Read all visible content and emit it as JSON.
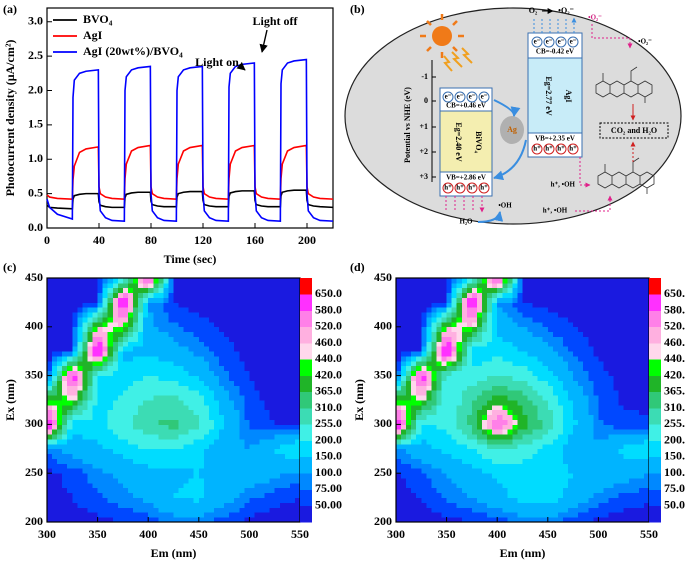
{
  "chart_data": [
    {
      "type": "line",
      "label": "(a)",
      "xlabel": "Time (sec)",
      "ylabel": "Photocurrent density (μA/cm²)",
      "xlim": [
        0,
        220
      ],
      "ylim": [
        0,
        3.2
      ],
      "xticks": [
        0,
        40,
        80,
        120,
        160,
        200
      ],
      "yticks": [
        {
          "value": 0,
          "label": "0.0"
        },
        0.5,
        {
          "value": 1,
          "label": "1.0"
        },
        1.5,
        {
          "value": 2,
          "label": "2.0"
        },
        2.5,
        {
          "value": 3,
          "label": "3.0"
        }
      ],
      "legend": "upper left",
      "annotations": [
        "Light on",
        "Light off"
      ],
      "x": [
        0,
        2,
        8,
        19.5,
        20,
        21,
        25,
        30,
        39.5,
        40,
        41,
        45,
        50,
        59.5,
        60,
        61,
        65,
        70,
        79.5,
        80,
        81,
        85,
        90,
        99.5,
        100,
        101,
        105,
        110,
        119.5,
        120,
        121,
        125,
        130,
        139.5,
        140,
        141,
        145,
        150,
        159.5,
        160,
        161,
        165,
        170,
        179.5,
        180,
        181,
        185,
        190,
        199.5,
        200,
        201,
        205,
        210,
        220
      ],
      "series": [
        {
          "name": "BVO₄",
          "color": "#000000",
          "values": [
            0.33,
            0.3,
            0.29,
            0.28,
            0.42,
            0.47,
            0.49,
            0.5,
            0.5,
            0.38,
            0.33,
            0.31,
            0.3,
            0.3,
            0.44,
            0.49,
            0.51,
            0.52,
            0.52,
            0.39,
            0.34,
            0.32,
            0.31,
            0.31,
            0.45,
            0.5,
            0.52,
            0.53,
            0.53,
            0.4,
            0.34,
            0.32,
            0.31,
            0.31,
            0.46,
            0.51,
            0.53,
            0.54,
            0.54,
            0.4,
            0.34,
            0.32,
            0.31,
            0.31,
            0.47,
            0.52,
            0.54,
            0.55,
            0.55,
            0.4,
            0.34,
            0.32,
            0.31,
            0.3
          ]
        },
        {
          "name": "AgI",
          "color": "#ff0000",
          "values": [
            0.48,
            0.45,
            0.43,
            0.42,
            0.7,
            0.9,
            1.1,
            1.15,
            1.18,
            0.6,
            0.5,
            0.45,
            0.43,
            0.42,
            0.72,
            0.93,
            1.12,
            1.17,
            1.2,
            0.6,
            0.5,
            0.45,
            0.43,
            0.42,
            0.72,
            0.93,
            1.12,
            1.17,
            1.2,
            0.6,
            0.5,
            0.45,
            0.43,
            0.42,
            0.72,
            0.93,
            1.12,
            1.17,
            1.2,
            0.6,
            0.5,
            0.45,
            0.43,
            0.42,
            0.72,
            0.93,
            1.12,
            1.17,
            1.2,
            0.6,
            0.5,
            0.45,
            0.43,
            0.42
          ]
        },
        {
          "name": "AgI (20wt%)/BVO₄",
          "color": "#0000ff",
          "values": [
            0.42,
            0.3,
            0.2,
            0.13,
            1.9,
            2.15,
            2.25,
            2.28,
            2.3,
            0.5,
            0.25,
            0.15,
            0.11,
            0.1,
            2.0,
            2.2,
            2.3,
            2.33,
            2.35,
            0.5,
            0.25,
            0.15,
            0.11,
            0.1,
            2.0,
            2.2,
            2.3,
            2.33,
            2.35,
            0.5,
            0.25,
            0.15,
            0.11,
            0.1,
            2.05,
            2.25,
            2.35,
            2.38,
            2.4,
            0.5,
            0.25,
            0.15,
            0.11,
            0.1,
            2.1,
            2.3,
            2.4,
            2.43,
            2.45,
            0.5,
            0.25,
            0.15,
            0.11,
            0.1
          ]
        }
      ]
    },
    {
      "type": "contour",
      "label": "(c)",
      "xlabel": "Em (nm)",
      "ylabel": "Ex (nm)",
      "xlim": [
        300,
        550
      ],
      "ylim": [
        200,
        450
      ],
      "xticks": [
        300,
        350,
        400,
        450,
        500,
        550
      ],
      "yticks": [
        200,
        250,
        300,
        350,
        400,
        450
      ],
      "x": [
        300,
        325,
        350,
        375,
        400,
        425,
        450,
        475,
        500,
        525,
        550
      ],
      "y": [
        200,
        225,
        250,
        275,
        300,
        325,
        350,
        375,
        400,
        425,
        450
      ],
      "z": [
        [
          30,
          35,
          40,
          50,
          60,
          80,
          80,
          60,
          40,
          35,
          30
        ],
        [
          40,
          50,
          70,
          90,
          110,
          150,
          160,
          120,
          80,
          60,
          50
        ],
        [
          40,
          60,
          90,
          110,
          130,
          140,
          150,
          140,
          130,
          110,
          90
        ],
        [
          80,
          120,
          140,
          170,
          200,
          200,
          160,
          110,
          100,
          150,
          200
        ],
        [
          700,
          160,
          180,
          240,
          300,
          330,
          270,
          150,
          70,
          50,
          50
        ],
        [
          400,
          450,
          180,
          210,
          260,
          270,
          220,
          120,
          60,
          40,
          35
        ],
        [
          30,
          650,
          200,
          170,
          200,
          180,
          140,
          80,
          50,
          35,
          30
        ],
        [
          30,
          40,
          700,
          130,
          140,
          120,
          90,
          60,
          40,
          30,
          30
        ],
        [
          30,
          30,
          450,
          450,
          110,
          80,
          60,
          45,
          35,
          30,
          30
        ],
        [
          30,
          30,
          30,
          700,
          100,
          50,
          40,
          35,
          30,
          30,
          30
        ],
        [
          30,
          30,
          30,
          200,
          650,
          40,
          30,
          30,
          30,
          30,
          30
        ]
      ],
      "levels": [
        {
          "value": 50,
          "label": "50.00"
        },
        {
          "value": 75,
          "label": "75.00"
        },
        {
          "value": 100,
          "label": "100.0"
        },
        {
          "value": 150,
          "label": "150.0"
        },
        {
          "value": 200,
          "label": "200.0"
        },
        {
          "value": 255,
          "label": "255.0"
        },
        {
          "value": 310,
          "label": "310.0"
        },
        {
          "value": 365,
          "label": "365.0"
        },
        {
          "value": 420,
          "label": "420.0"
        },
        {
          "value": 440,
          "label": "440.0"
        },
        {
          "value": 460,
          "label": "460.0"
        },
        {
          "value": 520,
          "label": "520.0"
        },
        {
          "value": 580,
          "label": "580.0"
        },
        {
          "value": 650,
          "label": "650.0"
        }
      ],
      "colors": [
        "#1a1ae0",
        "#0048ff",
        "#0088ff",
        "#00b4ff",
        "#00dcff",
        "#40f0e6",
        "#3cdcb4",
        "#30c878",
        "#20b428",
        "#00ff00",
        "#ffd8ec",
        "#ffb0e0",
        "#ff80e8",
        "#ff30ff",
        "#ff0000"
      ]
    },
    {
      "type": "contour",
      "label": "(d)",
      "xlabel": "Em (nm)",
      "ylabel": "Ex (nm)",
      "xlim": [
        300,
        550
      ],
      "ylim": [
        200,
        450
      ],
      "xticks": [
        300,
        350,
        400,
        450,
        500,
        550
      ],
      "yticks": [
        200,
        250,
        300,
        350,
        400,
        450
      ],
      "x": [
        300,
        325,
        350,
        375,
        400,
        425,
        450,
        475,
        500,
        525,
        550
      ],
      "y": [
        200,
        225,
        250,
        275,
        300,
        325,
        350,
        375,
        400,
        425,
        450
      ],
      "z": [
        [
          30,
          35,
          40,
          50,
          60,
          80,
          80,
          60,
          40,
          35,
          30
        ],
        [
          40,
          50,
          80,
          100,
          130,
          170,
          180,
          130,
          90,
          65,
          55
        ],
        [
          45,
          70,
          100,
          130,
          160,
          170,
          170,
          150,
          140,
          120,
          100
        ],
        [
          90,
          130,
          160,
          200,
          250,
          230,
          180,
          120,
          110,
          160,
          200
        ],
        [
          700,
          180,
          220,
          330,
          600,
          400,
          290,
          160,
          80,
          60,
          55
        ],
        [
          400,
          450,
          200,
          300,
          400,
          340,
          250,
          140,
          70,
          45,
          40
        ],
        [
          30,
          650,
          220,
          220,
          260,
          230,
          170,
          100,
          60,
          40,
          30
        ],
        [
          30,
          40,
          700,
          160,
          180,
          150,
          110,
          70,
          45,
          30,
          30
        ],
        [
          30,
          30,
          450,
          450,
          130,
          100,
          70,
          50,
          35,
          30,
          30
        ],
        [
          30,
          30,
          30,
          700,
          100,
          50,
          40,
          35,
          30,
          30,
          30
        ],
        [
          30,
          30,
          30,
          200,
          650,
          40,
          30,
          30,
          30,
          30,
          30
        ]
      ],
      "levels": [
        {
          "value": 50,
          "label": "50.00"
        },
        {
          "value": 75,
          "label": "75.00"
        },
        {
          "value": 100,
          "label": "100.0"
        },
        {
          "value": 150,
          "label": "150.0"
        },
        {
          "value": 200,
          "label": "200.0"
        },
        {
          "value": 255,
          "label": "255.0"
        },
        {
          "value": 310,
          "label": "310.0"
        },
        {
          "value": 365,
          "label": "365.0"
        },
        {
          "value": 420,
          "label": "420.0"
        },
        {
          "value": 440,
          "label": "440.0"
        },
        {
          "value": 460,
          "label": "460.0"
        },
        {
          "value": 520,
          "label": "520.0"
        },
        {
          "value": 580,
          "label": "580.0"
        },
        {
          "value": 650,
          "label": "650.0"
        }
      ],
      "colors": [
        "#1a1ae0",
        "#0048ff",
        "#0088ff",
        "#00b4ff",
        "#00dcff",
        "#40f0e6",
        "#3cdcb4",
        "#30c878",
        "#20b428",
        "#00ff00",
        "#ffd8ec",
        "#ffb0e0",
        "#ff80e8",
        "#ff30ff",
        "#ff0000"
      ]
    }
  ],
  "diagram": {
    "label": "(b)",
    "axis_label": "Potential vs NHE (eV)",
    "axis_ticks": [
      "-1",
      "0",
      "+1",
      "+2",
      "+3"
    ],
    "semiconductors": [
      {
        "name": "BiVO₄",
        "cb": "CB=+0.46 eV",
        "vb": "VB=+2.86 eV",
        "eg": "Eg=2.40 eV"
      },
      {
        "name": "AgI",
        "cb": "CB=-0.42 eV",
        "vb": "VB=+2.35 eV",
        "eg": "Eg=2.77 eV"
      }
    ],
    "metal": "Ag",
    "electron": "e⁻",
    "hole": "h⁺",
    "oxygen": "O₂",
    "superoxide": "•O₂⁻",
    "hydroxyl": "•OH",
    "water": "H₂O",
    "hole_oh": "h⁺, •OH",
    "products": "CO₂ and H₂O"
  }
}
